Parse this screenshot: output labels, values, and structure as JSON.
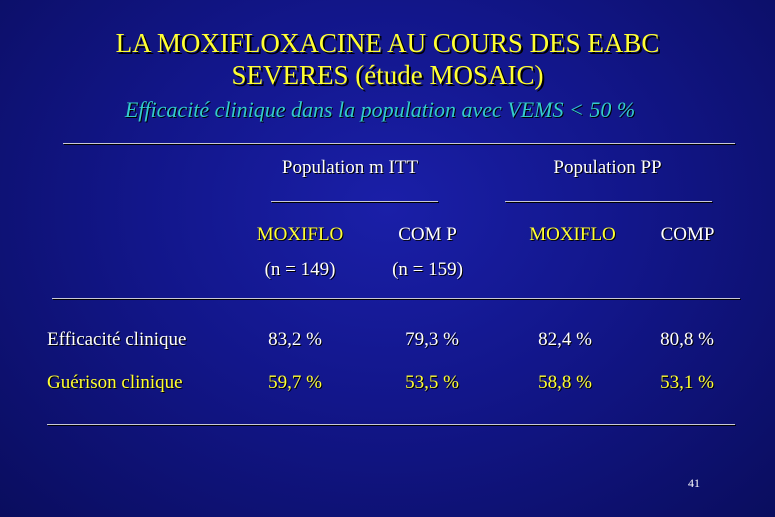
{
  "slide": {
    "title_line1": "LA MOXIFLOXACINE AU COURS DES EABC",
    "title_line2": "SEVERES (étude MOSAIC)",
    "subtitle": "Efficacité clinique dans la population avec VEMS < 50 %",
    "page_number": "41"
  },
  "table": {
    "groups": [
      "Population m ITT",
      "Population  PP"
    ],
    "columns": [
      {
        "label": "MOXIFLO",
        "sub": "(n = 149)"
      },
      {
        "label": "COM P",
        "sub": "(n = 159)"
      },
      {
        "label": "MOXIFLO",
        "sub": ""
      },
      {
        "label": "COMP",
        "sub": ""
      }
    ],
    "rows": [
      {
        "label": "Efficacité clinique",
        "values": [
          "83,2 %",
          "79,3 %",
          "82,4 %",
          "80,8 %"
        ]
      },
      {
        "label": "Guérison clinique",
        "values": [
          "59,7 %",
          "53,5 %",
          "58,8 %",
          "53,1 %"
        ]
      }
    ]
  },
  "colors": {
    "background": "#12168a",
    "title": "#ffff33",
    "subtitle": "#33cccc",
    "text": "#ffffff"
  }
}
